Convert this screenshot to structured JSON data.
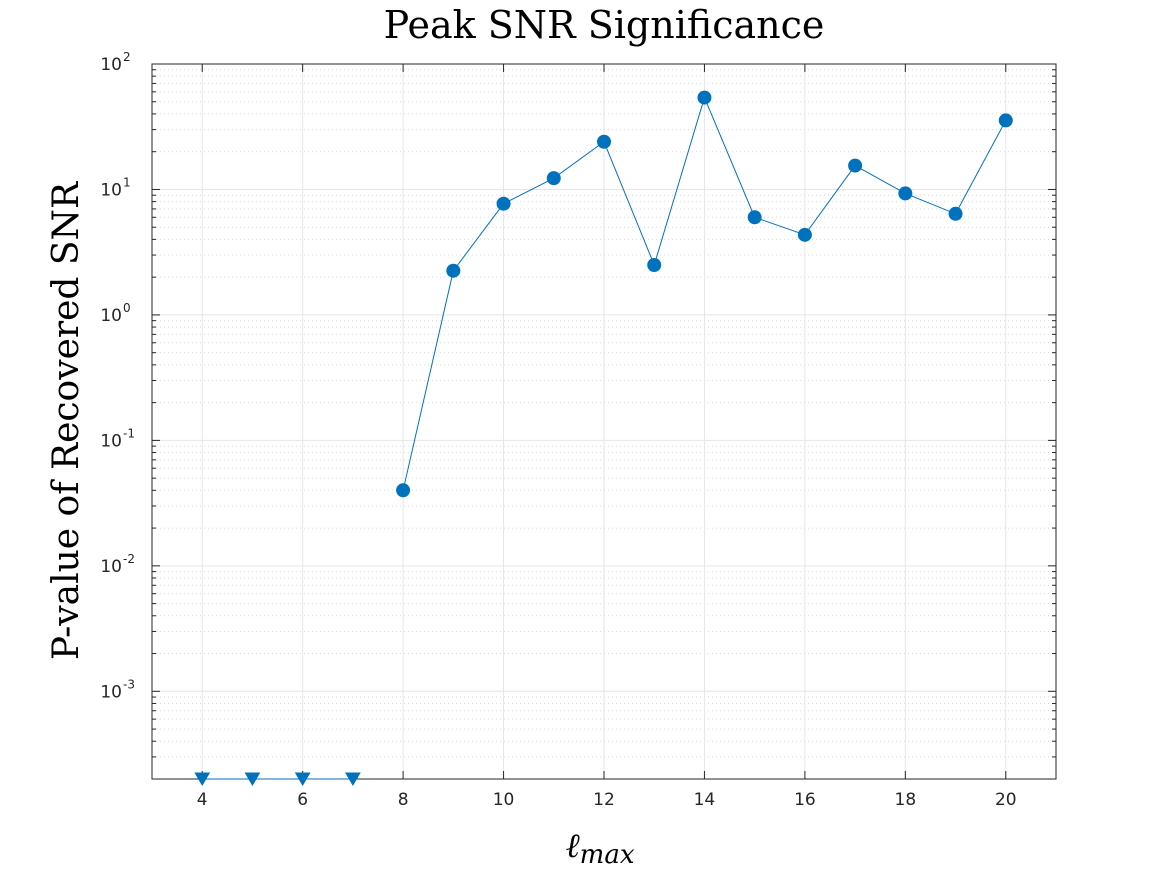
{
  "chart_data": {
    "type": "line",
    "title": "Peak SNR Significance",
    "xlabel": "ℓ",
    "xlabel_subscript": "max",
    "ylabel": "P-value of Recovered SNR",
    "y_scale": "log",
    "xlim": [
      3,
      21
    ],
    "ylim": [
      0.0002,
      100
    ],
    "grid": true,
    "x_ticks": [
      4,
      6,
      8,
      10,
      12,
      14,
      16,
      18,
      20
    ],
    "x_tick_labels": [
      "4",
      "6",
      "8",
      "10",
      "12",
      "14",
      "16",
      "18",
      "20"
    ],
    "y_ticks": [
      0.001,
      0.01,
      0.1,
      1,
      10,
      100
    ],
    "y_tick_labels": [
      {
        "base": "10",
        "exp": "-3"
      },
      {
        "base": "10",
        "exp": "-2"
      },
      {
        "base": "10",
        "exp": "-1"
      },
      {
        "base": "10",
        "exp": "0"
      },
      {
        "base": "10",
        "exp": "1"
      },
      {
        "base": "10",
        "exp": "2"
      }
    ],
    "colors": {
      "series": "#0072BD",
      "grid": "#e6e6e6",
      "axis": "#262626"
    },
    "series": [
      {
        "marker": "circle",
        "x": [
          8,
          9,
          10,
          11,
          12,
          13,
          14,
          15,
          16,
          17,
          18,
          19,
          20
        ],
        "y": [
          0.04,
          2.25,
          7.7,
          12.3,
          24.0,
          2.5,
          54.0,
          6.0,
          4.35,
          15.5,
          9.3,
          6.4,
          35.5
        ]
      },
      {
        "marker": "triangle-down",
        "x": [
          4,
          5,
          6,
          7
        ],
        "y": [
          0.0002,
          0.0002,
          0.0002,
          0.0002
        ]
      }
    ]
  }
}
